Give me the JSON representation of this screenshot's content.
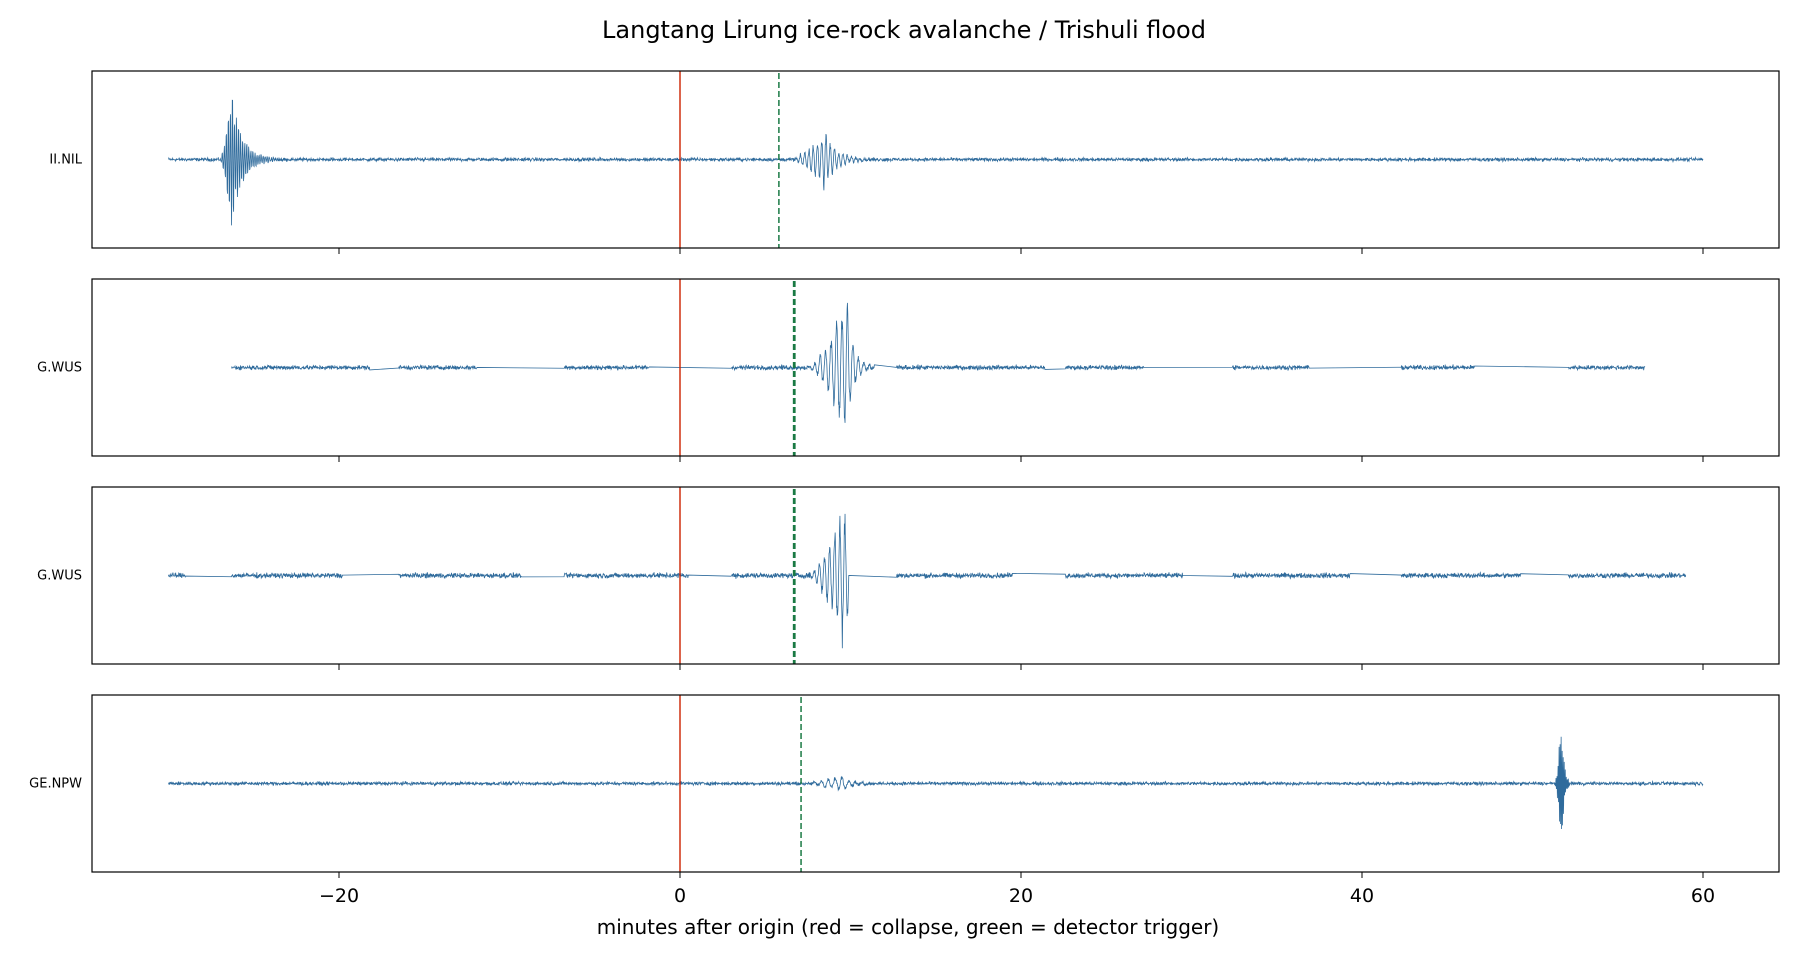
{
  "chart_data": {
    "type": "line",
    "title": "Langtang Lirung ice-rock avalanche / Trishuli flood",
    "xlabel": "minutes after origin (red = collapse, green = detector trigger)",
    "xlim": [
      -30,
      60
    ],
    "xticks": [
      -20,
      0,
      20,
      40,
      60
    ],
    "xtick_labels": [
      "−20",
      "0",
      "20",
      "40",
      "60"
    ],
    "collapse_minute": 0,
    "colors": {
      "trace": "#2f6b9c",
      "collapse_line": "#cc2200",
      "trigger_line": "#1a7a44"
    },
    "panels": [
      {
        "station": "II.NIL",
        "trigger_minute": 5.8,
        "trace_extent": [
          -30,
          60
        ],
        "segments": [
          [
            -30,
            60
          ]
        ],
        "noise": 0.03,
        "bursts": [
          {
            "t_start": -27.0,
            "peak_at": -26.3,
            "t_end": -22.0,
            "amplitude": 0.93,
            "decay": 1.6,
            "period": 0.12
          },
          {
            "t_start": 6.5,
            "peak_at": 8.5,
            "t_end": 12.5,
            "amplitude": 0.38,
            "decay": 1.7,
            "period": 0.25
          }
        ]
      },
      {
        "station": "G.WUS",
        "trigger_minute": 6.7,
        "trace_extent": [
          -26.3,
          56.6
        ],
        "segments": [
          [
            -26.3,
            -18.2
          ],
          [
            -16.5,
            -11.9
          ],
          [
            -6.8,
            -1.8
          ],
          [
            3.0,
            11.4
          ],
          [
            12.7,
            21.4
          ],
          [
            22.6,
            27.2
          ],
          [
            32.4,
            36.9
          ],
          [
            42.3,
            46.6
          ],
          [
            52.1,
            56.6
          ]
        ],
        "noise": 0.04,
        "bursts": [
          {
            "t_start": 7.5,
            "peak_at": 9.8,
            "t_end": 11.6,
            "amplitude": 0.95,
            "decay": 0.9,
            "period": 0.32
          }
        ]
      },
      {
        "station": "G.WUS",
        "trigger_minute": 6.7,
        "trace_extent": [
          -30,
          59
        ],
        "segments": [
          [
            -30,
            -29
          ],
          [
            -26.3,
            -19.8
          ],
          [
            -16.5,
            -9.3
          ],
          [
            -6.8,
            0.5
          ],
          [
            3.0,
            9.9
          ],
          [
            12.7,
            19.5
          ],
          [
            22.6,
            29.5
          ],
          [
            32.4,
            39.3
          ],
          [
            42.3,
            49.3
          ],
          [
            52.1,
            59
          ]
        ],
        "noise": 0.045,
        "bursts": [
          {
            "t_start": 7.5,
            "peak_at": 9.6,
            "t_end": 9.9,
            "amplitude": 0.95,
            "decay": 1.0,
            "period": 0.3
          }
        ]
      },
      {
        "station": "GE.NPW",
        "trigger_minute": 7.1,
        "trace_extent": [
          -30,
          60
        ],
        "segments": [
          [
            -30,
            60
          ]
        ],
        "noise": 0.03,
        "bursts": [
          {
            "t_start": 7.0,
            "peak_at": 9.5,
            "t_end": 13.0,
            "amplitude": 0.1,
            "decay": 1.5,
            "period": 0.4
          },
          {
            "t_start": 51.3,
            "peak_at": 51.7,
            "t_end": 52.4,
            "amplitude": 0.97,
            "decay": 0.35,
            "period": 0.06
          }
        ]
      }
    ]
  }
}
